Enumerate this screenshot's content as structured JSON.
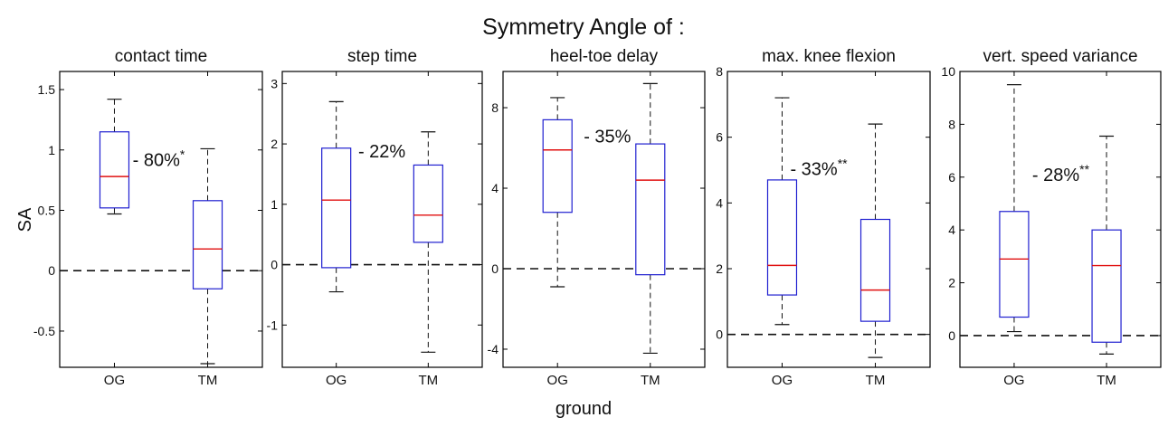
{
  "title": "Symmetry Angle of :",
  "xlabel": "ground",
  "ylabel": "SA",
  "colors": {
    "box": "#1f1fd0",
    "median": "#e01010",
    "whisker": "#111111",
    "axis": "#000000"
  },
  "chart_data": [
    {
      "type": "box",
      "title": "contact time",
      "categories": [
        "OG",
        "TM"
      ],
      "ylim": [
        -0.8,
        1.65
      ],
      "yticks": [
        -0.5,
        0,
        0.5,
        1,
        1.5
      ],
      "ytick_labels": [
        "-0.5",
        "0",
        "0.5",
        "1",
        "1.5"
      ],
      "boxes": [
        {
          "category": "OG",
          "min": 0.47,
          "q1": 0.52,
          "median": 0.78,
          "q3": 1.15,
          "max": 1.42
        },
        {
          "category": "TM",
          "min": -0.77,
          "q1": -0.15,
          "median": 0.18,
          "q3": 0.58,
          "max": 1.01
        }
      ],
      "reference_line": 0,
      "annotation": {
        "text": "- 80%",
        "superscript": "*"
      }
    },
    {
      "type": "box",
      "title": "step time",
      "categories": [
        "OG",
        "TM"
      ],
      "ylim": [
        -1.7,
        3.2
      ],
      "yticks": [
        -1,
        0,
        1,
        2,
        3
      ],
      "ytick_labels": [
        "-1",
        "0",
        "1",
        "2",
        "3"
      ],
      "boxes": [
        {
          "category": "OG",
          "min": -0.45,
          "q1": -0.05,
          "median": 1.07,
          "q3": 1.93,
          "max": 2.7
        },
        {
          "category": "TM",
          "min": -1.45,
          "q1": 0.37,
          "median": 0.82,
          "q3": 1.65,
          "max": 2.2
        }
      ],
      "reference_line": 0,
      "annotation": {
        "text": "- 22%",
        "superscript": ""
      }
    },
    {
      "type": "box",
      "title": "heel-toe delay",
      "categories": [
        "OG",
        "TM"
      ],
      "ylim": [
        -4.9,
        9.8
      ],
      "yticks": [
        -4,
        0,
        4,
        8
      ],
      "ytick_labels": [
        "-4",
        "0",
        "4",
        "8"
      ],
      "boxes": [
        {
          "category": "OG",
          "min": -0.9,
          "q1": 2.8,
          "median": 5.9,
          "q3": 7.4,
          "max": 8.5
        },
        {
          "category": "TM",
          "min": -4.2,
          "q1": -0.3,
          "median": 4.4,
          "q3": 6.2,
          "max": 9.2
        }
      ],
      "reference_line": 0,
      "annotation": {
        "text": "- 35%",
        "superscript": ""
      }
    },
    {
      "type": "box",
      "title": "max. knee flexion",
      "categories": [
        "OG",
        "TM"
      ],
      "ylim": [
        -1.0,
        8.0
      ],
      "yticks": [
        0,
        2,
        4,
        6,
        8
      ],
      "ytick_labels": [
        "0",
        "2",
        "4",
        "6",
        "8"
      ],
      "boxes": [
        {
          "category": "OG",
          "min": 0.3,
          "q1": 1.2,
          "median": 2.1,
          "q3": 4.7,
          "max": 7.2
        },
        {
          "category": "TM",
          "min": -0.7,
          "q1": 0.4,
          "median": 1.35,
          "q3": 3.5,
          "max": 6.4
        }
      ],
      "reference_line": 0,
      "annotation": {
        "text": "- 33%",
        "superscript": "**"
      }
    },
    {
      "type": "box",
      "title": "vert. speed variance",
      "categories": [
        "OG",
        "TM"
      ],
      "ylim": [
        -1.2,
        10.0
      ],
      "yticks": [
        0,
        2,
        4,
        6,
        8,
        10
      ],
      "ytick_labels": [
        "0",
        "2",
        "4",
        "6",
        "8",
        "10"
      ],
      "boxes": [
        {
          "category": "OG",
          "min": 0.15,
          "q1": 0.7,
          "median": 2.9,
          "q3": 4.7,
          "max": 9.5
        },
        {
          "category": "TM",
          "min": -0.7,
          "q1": -0.25,
          "median": 2.65,
          "q3": 4.0,
          "max": 7.55
        }
      ],
      "reference_line": 0,
      "annotation": {
        "text": "- 28%",
        "superscript": "**"
      }
    }
  ]
}
